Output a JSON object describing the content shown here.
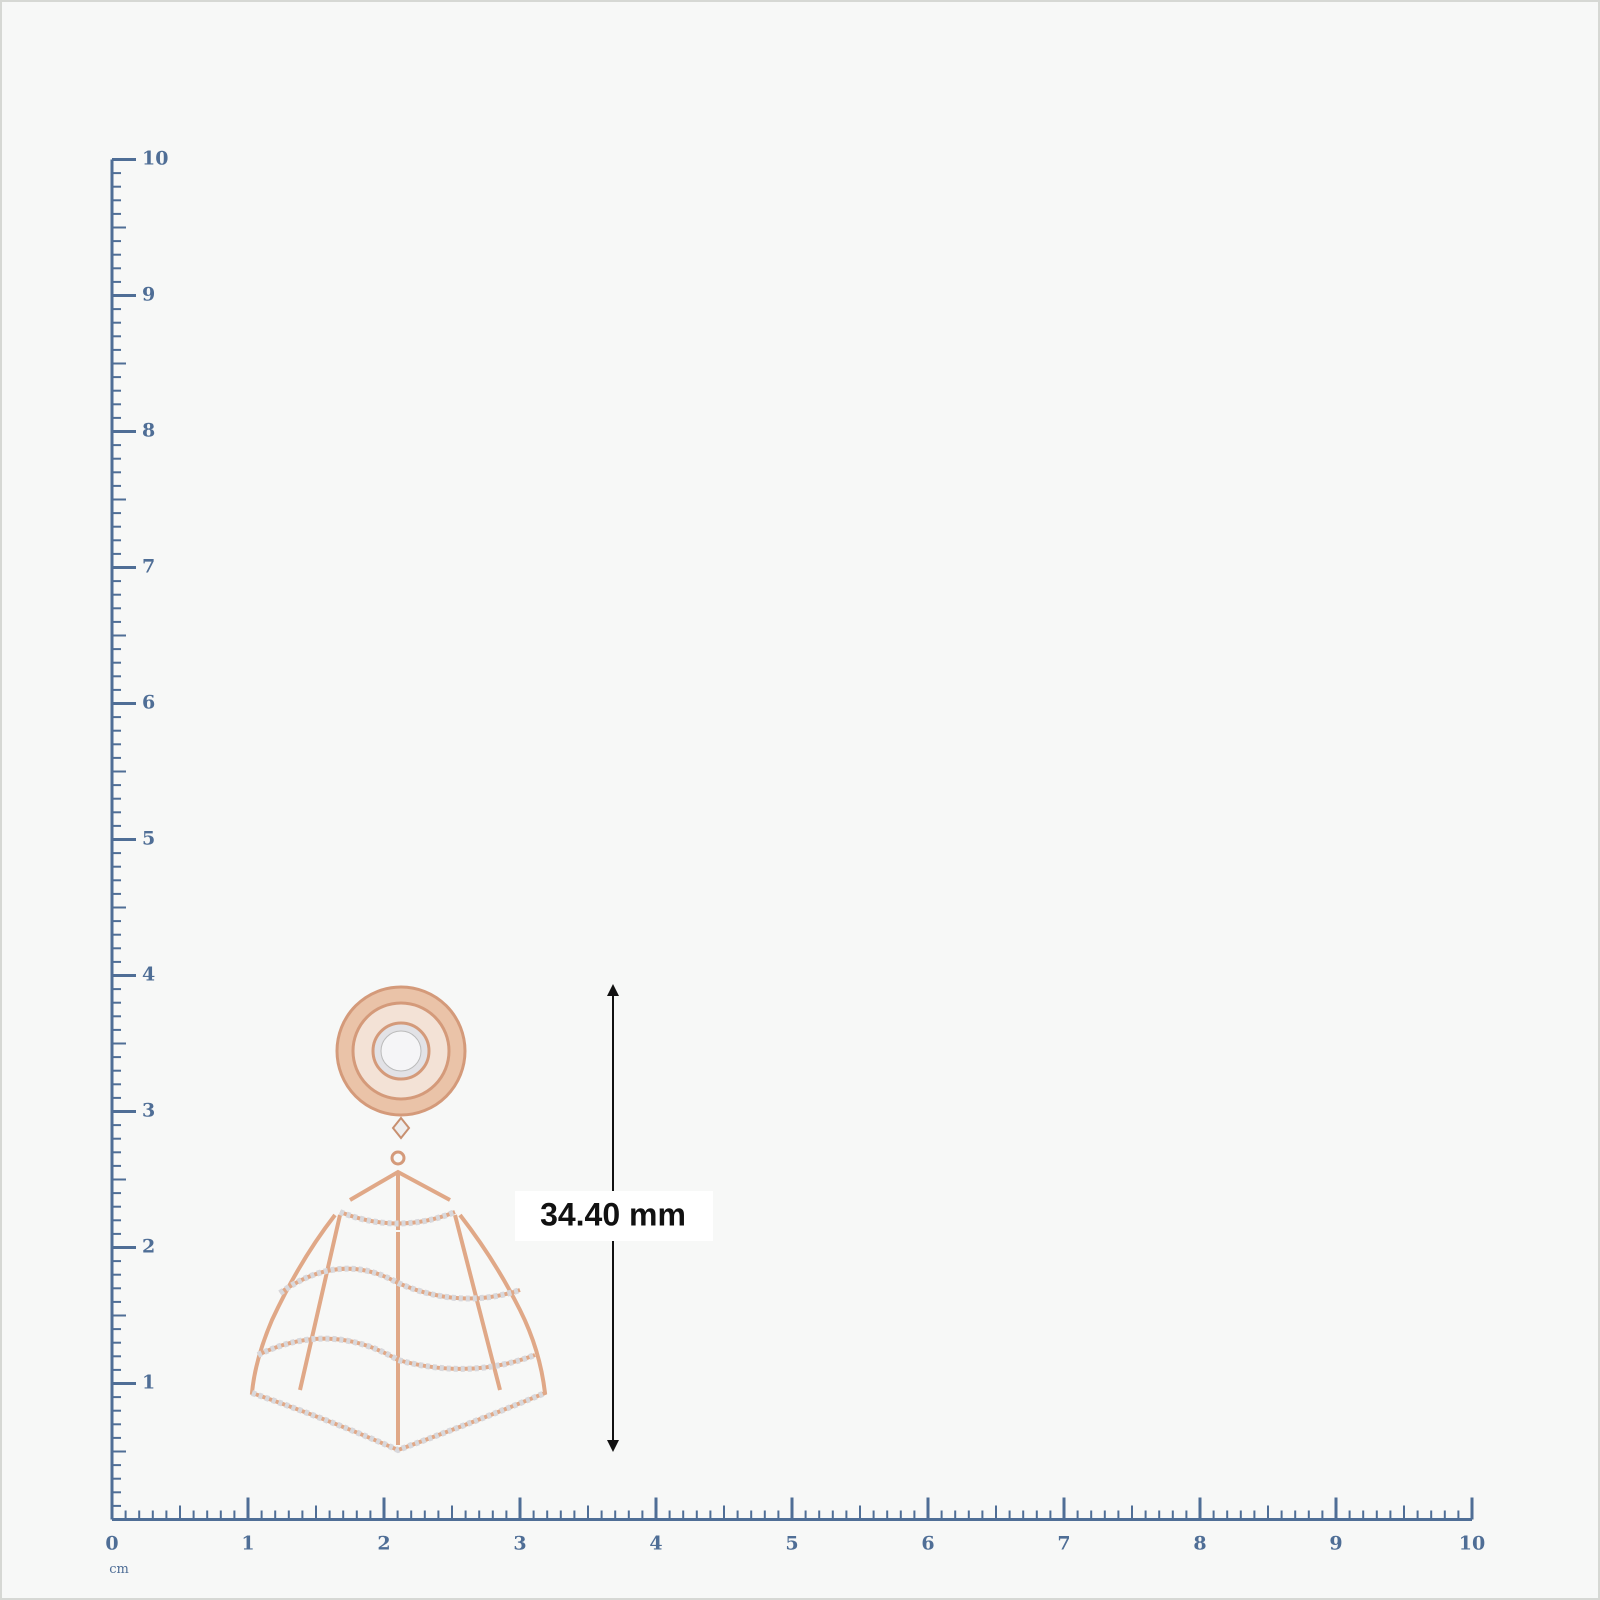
{
  "ruler": {
    "unit": "cm",
    "xlim": [
      0,
      10
    ],
    "ylim": [
      0,
      10
    ],
    "x_ticks": [
      0,
      1,
      2,
      3,
      4,
      5,
      6,
      7,
      8,
      9,
      10
    ],
    "y_ticks": [
      1,
      2,
      3,
      4,
      5,
      6,
      7,
      8,
      9,
      10
    ]
  },
  "measurement": {
    "label": "34.40 mm"
  }
}
